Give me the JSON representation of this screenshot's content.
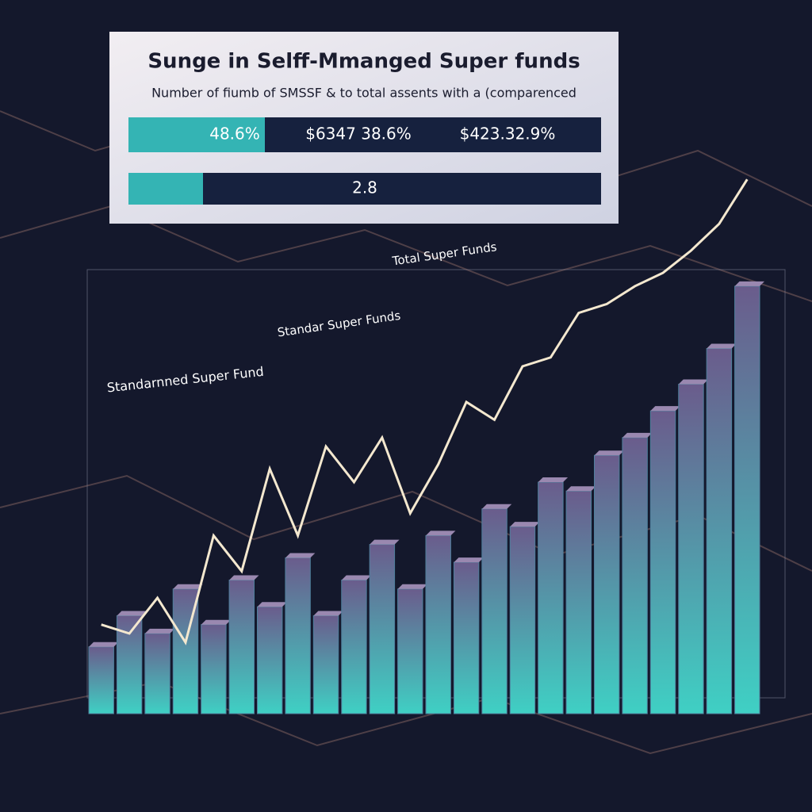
{
  "chart_data": {
    "type": "bar",
    "title": "Sunge in Selff-Mmanged Super funds",
    "subtitle": "Number of fiumb of SMSSF & to total assents with a (comparenced",
    "panel_rows": [
      [
        "48.6%",
        "$6347 38.6%",
        "$423.32.9%"
      ],
      [
        "2.8"
      ]
    ],
    "annotations": [
      "Standarnned Super Fund"
    ],
    "categories": [
      null,
      null,
      null,
      null,
      null,
      null,
      null,
      null,
      null,
      null,
      null,
      null,
      null,
      null,
      null,
      null,
      null,
      null,
      null,
      null,
      null,
      null,
      null,
      null
    ],
    "series": [
      {
        "name": "Standar Super Funds",
        "color": "#4f7f9c",
        "values": [
          15,
          22,
          18,
          28,
          20,
          30,
          24,
          35,
          22,
          30,
          38,
          28,
          40,
          34,
          46,
          42,
          52,
          50,
          58,
          62,
          68,
          74,
          82,
          96
        ]
      },
      {
        "name": "Total Super Funds",
        "color": "#f4e8cf",
        "axis": "line",
        "values": [
          20,
          18,
          26,
          16,
          40,
          32,
          55,
          40,
          60,
          52,
          62,
          45,
          56,
          70,
          66,
          78,
          80,
          90,
          92,
          96,
          99,
          104,
          110,
          120
        ]
      }
    ],
    "ylim": [
      0,
      130
    ]
  }
}
